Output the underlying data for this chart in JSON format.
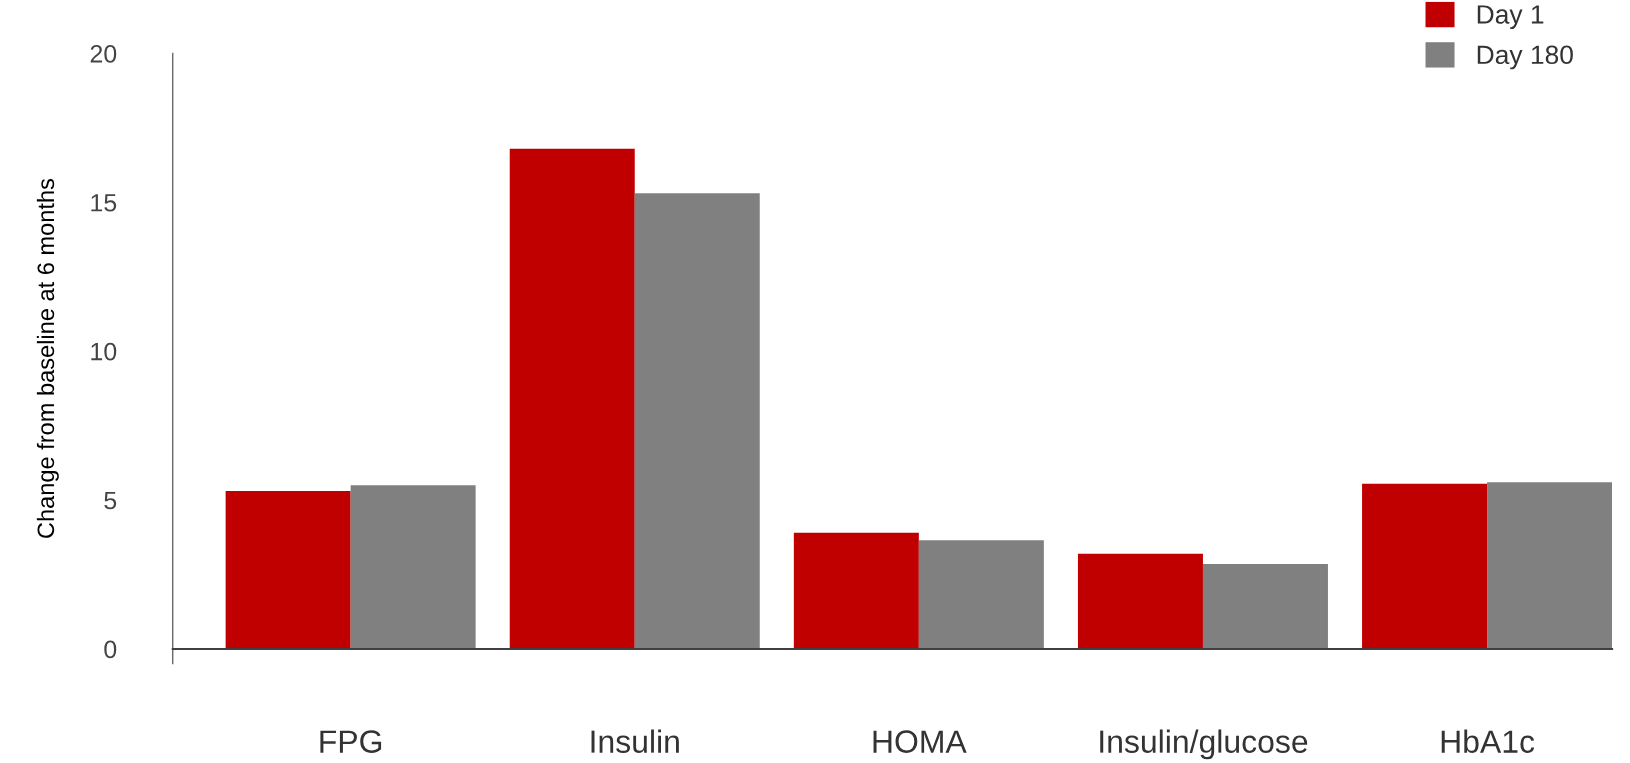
{
  "chart_data": {
    "type": "bar",
    "ylabel": "Change from baseline at 6 months",
    "categories": [
      "FPG",
      "Insulin",
      "HOMA",
      "Insulin/glucose",
      "HbA1c"
    ],
    "series": [
      {
        "name": "Day 1",
        "color": "#c00000",
        "values": [
          5.3,
          16.8,
          3.9,
          3.2,
          5.55
        ]
      },
      {
        "name": "Day 180",
        "color": "#808080",
        "values": [
          5.5,
          15.3,
          3.65,
          2.85,
          5.6
        ]
      }
    ],
    "ylim": [
      -0.5,
      20
    ],
    "yticks": [
      0,
      5,
      10,
      15,
      20
    ],
    "legend": "top right"
  }
}
